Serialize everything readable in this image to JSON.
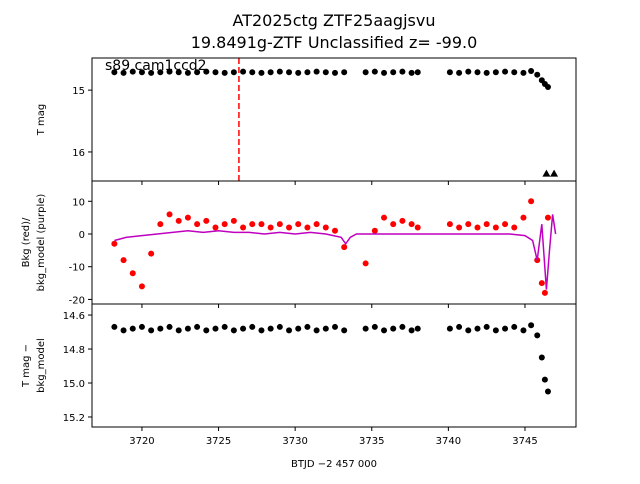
{
  "chart_data": [
    {
      "type": "scatter",
      "title": "AT2025ctg  ZTF25aagjsvu",
      "subtitle": "19.8491g-ZTF Unclassified z= -99.0",
      "ylabel": [
        "T mag"
      ],
      "annotation": "s89 cam1ccd2",
      "vlines": [
        3726.33
      ],
      "vline_color": "#ff0000",
      "xlim": [
        3716.74,
        3748.33
      ],
      "ylim": [
        16.47,
        14.48
      ],
      "yticks": [
        15,
        16
      ],
      "series": [
        {
          "color": "#000000",
          "marker": "circle",
          "x": [
            3718.2,
            3718.8,
            3719.4,
            3720.0,
            3720.6,
            3721.2,
            3721.8,
            3722.4,
            3723.0,
            3723.6,
            3724.2,
            3724.8,
            3725.4,
            3726.0,
            3726.6,
            3727.2,
            3727.8,
            3728.4,
            3729.0,
            3729.6,
            3730.2,
            3730.8,
            3731.4,
            3732.0,
            3732.6,
            3733.2,
            3734.6,
            3735.2,
            3735.8,
            3736.4,
            3737.0,
            3737.6,
            3738.0,
            3740.1,
            3740.7,
            3741.3,
            3741.9,
            3742.5,
            3743.1,
            3743.7,
            3744.3,
            3744.9,
            3745.4,
            3745.8,
            3746.1,
            3746.3,
            3746.5
          ],
          "values": [
            14.71,
            14.72,
            14.7,
            14.71,
            14.72,
            14.71,
            14.7,
            14.71,
            14.72,
            14.71,
            14.7,
            14.71,
            14.72,
            14.71,
            14.7,
            14.71,
            14.72,
            14.71,
            14.7,
            14.71,
            14.72,
            14.71,
            14.7,
            14.71,
            14.72,
            14.71,
            14.71,
            14.7,
            14.72,
            14.71,
            14.7,
            14.72,
            14.71,
            14.71,
            14.72,
            14.7,
            14.71,
            14.72,
            14.71,
            14.7,
            14.71,
            14.72,
            14.69,
            14.75,
            14.84,
            14.9,
            14.95
          ]
        },
        {
          "color": "#000000",
          "marker": "triangle",
          "x": [
            3746.4,
            3746.9
          ],
          "values": [
            16.35,
            16.35
          ]
        }
      ]
    },
    {
      "type": "scatter",
      "ylabel": [
        "Bkg (red)/",
        "bkg_model (purple)"
      ],
      "xlim": [
        3716.74,
        3748.33
      ],
      "ylim": [
        -21.4,
        16.2
      ],
      "yticks": [
        -20,
        -10,
        0,
        10
      ],
      "series": [
        {
          "color": "#ff0000",
          "marker": "circle",
          "x": [
            3718.2,
            3718.8,
            3719.4,
            3720.0,
            3720.6,
            3721.2,
            3721.8,
            3722.4,
            3723.0,
            3723.6,
            3724.2,
            3724.8,
            3725.4,
            3726.0,
            3726.6,
            3727.2,
            3727.8,
            3728.4,
            3729.0,
            3729.6,
            3730.2,
            3730.8,
            3731.4,
            3732.0,
            3732.6,
            3733.2,
            3734.6,
            3735.2,
            3735.8,
            3736.4,
            3737.0,
            3737.6,
            3738.0,
            3740.1,
            3740.7,
            3741.3,
            3741.9,
            3742.5,
            3743.1,
            3743.7,
            3744.3,
            3744.9,
            3745.4,
            3745.8,
            3746.1,
            3746.3,
            3746.5
          ],
          "values": [
            -3,
            -8,
            -12,
            -16,
            -6,
            3,
            6,
            4,
            5,
            3,
            4,
            2,
            3,
            4,
            2,
            3,
            3,
            2,
            3,
            2,
            3,
            2,
            3,
            2,
            1,
            -4,
            -9,
            1,
            5,
            3,
            4,
            3,
            2,
            3,
            2,
            3,
            2,
            3,
            2,
            3,
            2,
            5,
            10,
            -8,
            -15,
            -18,
            5
          ]
        },
        {
          "color": "#bf00bf",
          "marker": "line",
          "x": [
            3718.2,
            3719,
            3720,
            3721,
            3722,
            3723,
            3724,
            3725,
            3726,
            3727,
            3728,
            3729,
            3730,
            3731,
            3732,
            3733,
            3733.3,
            3733.6,
            3734,
            3735,
            3736,
            3737,
            3738,
            3739,
            3740,
            3741,
            3742,
            3743,
            3744,
            3745,
            3745.5,
            3745.8,
            3746.1,
            3746.4,
            3746.6,
            3746.8,
            3747.0
          ],
          "values": [
            -2,
            -1,
            -0.5,
            0,
            0.5,
            1,
            0.5,
            1,
            0.5,
            0.5,
            0,
            0.5,
            0,
            0.5,
            0,
            -1,
            -3,
            -1,
            0,
            0,
            0,
            0,
            0,
            0,
            0,
            0,
            0,
            0,
            0,
            -0.5,
            -2,
            -8,
            3,
            -17,
            -5,
            6,
            0
          ]
        }
      ]
    },
    {
      "type": "scatter",
      "ylabel": [
        "T mag −",
        "bkg_model"
      ],
      "xlabel": "BTJD −2 457 000",
      "xlim": [
        3716.74,
        3748.33
      ],
      "ylim": [
        15.259,
        14.535
      ],
      "xticks": [
        3720,
        3725,
        3730,
        3735,
        3740,
        3745
      ],
      "yticks": [
        14.6,
        14.8,
        {
          "value": 15,
          "label": "15.0"
        },
        15.2
      ],
      "series": [
        {
          "color": "#000000",
          "marker": "circle",
          "x": [
            3718.2,
            3718.8,
            3719.4,
            3720.0,
            3720.6,
            3721.2,
            3721.8,
            3722.4,
            3723.0,
            3723.6,
            3724.2,
            3724.8,
            3725.4,
            3726.0,
            3726.6,
            3727.2,
            3727.8,
            3728.4,
            3729.0,
            3729.6,
            3730.2,
            3730.8,
            3731.4,
            3732.0,
            3732.6,
            3733.2,
            3734.6,
            3735.2,
            3735.8,
            3736.4,
            3737.0,
            3737.6,
            3738.0,
            3740.1,
            3740.7,
            3741.3,
            3741.9,
            3742.5,
            3743.1,
            3743.7,
            3744.3,
            3744.9,
            3745.4,
            3745.8,
            3746.1,
            3746.3,
            3746.5
          ],
          "values": [
            14.67,
            14.69,
            14.68,
            14.67,
            14.69,
            14.68,
            14.67,
            14.69,
            14.68,
            14.67,
            14.69,
            14.68,
            14.67,
            14.69,
            14.68,
            14.67,
            14.69,
            14.68,
            14.67,
            14.69,
            14.68,
            14.67,
            14.69,
            14.68,
            14.67,
            14.69,
            14.68,
            14.67,
            14.69,
            14.68,
            14.67,
            14.69,
            14.68,
            14.68,
            14.67,
            14.69,
            14.68,
            14.67,
            14.69,
            14.68,
            14.67,
            14.69,
            14.66,
            14.72,
            14.85,
            14.98,
            15.05
          ]
        }
      ]
    }
  ]
}
